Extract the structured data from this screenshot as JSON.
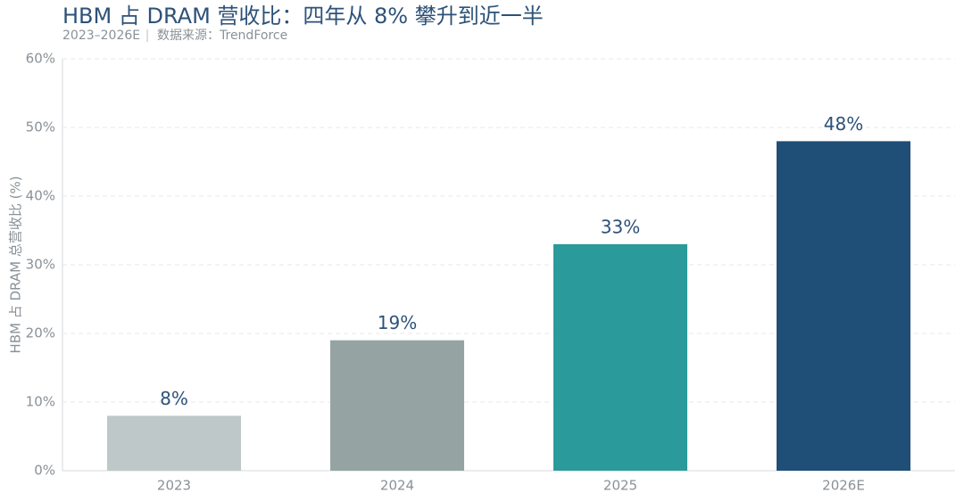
{
  "chart_data": {
    "type": "bar",
    "title": "HBM 占 DRAM 营收比：四年从 8% 攀升到近一半",
    "subtitle": "2023–2026E",
    "source": "数据来源：TrendForce",
    "y_label": "HBM 占 DRAM 总营收比 (%)",
    "categories": [
      "2023",
      "2024",
      "2025",
      "2026E"
    ],
    "values": [
      8,
      19,
      33,
      48
    ],
    "value_labels": [
      "8%",
      "19%",
      "33%",
      "48%"
    ],
    "colors": [
      "#bfc8c9",
      "#95a4a3",
      "#2b9a9a",
      "#1f4e77"
    ],
    "ylim": [
      0,
      60
    ],
    "yticks": [
      {
        "value": 0,
        "label": "0%"
      },
      {
        "value": 10,
        "label": "10%"
      },
      {
        "value": 20,
        "label": "20%"
      },
      {
        "value": 30,
        "label": "30%"
      },
      {
        "value": 40,
        "label": "40%"
      },
      {
        "value": 50,
        "label": "50%"
      },
      {
        "value": 60,
        "label": "60%"
      }
    ],
    "grid": true
  }
}
